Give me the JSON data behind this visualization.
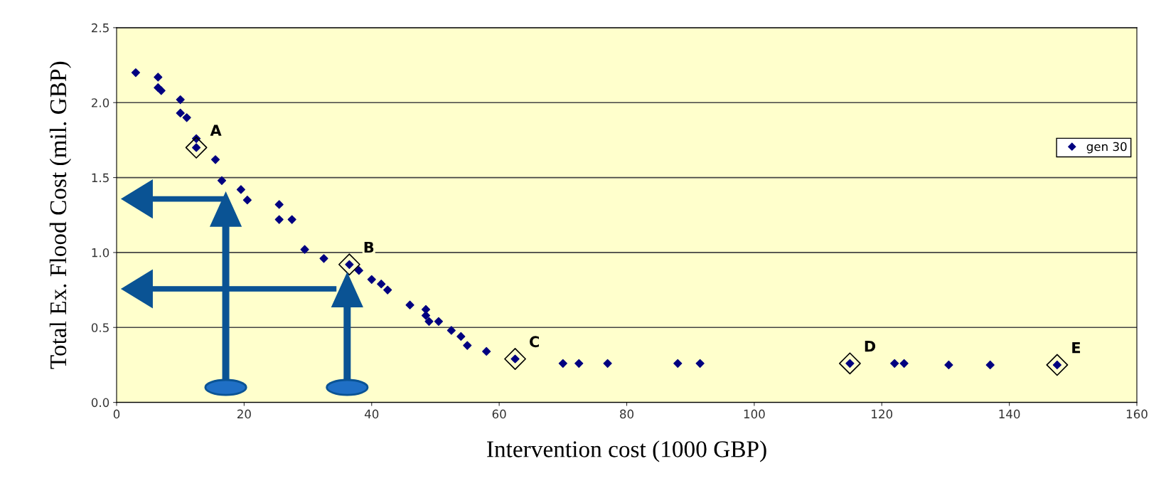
{
  "chart_data": {
    "type": "scatter",
    "xlabel": "Intervention cost (1000 GBP)",
    "ylabel": "Total Ex. Flood Cost (mil. GBP)",
    "series": [
      {
        "name": "gen 30",
        "color": "#000080",
        "marker": "diamond",
        "x": [
          3,
          6.5,
          6.5,
          7,
          10,
          10,
          11,
          12.5,
          12.5,
          15.5,
          16.5,
          19.5,
          20.5,
          25.5,
          25.5,
          27.5,
          29.5,
          32.5,
          36.5,
          38,
          40,
          41.5,
          42.5,
          46,
          48.5,
          48.5,
          49,
          50.5,
          52.5,
          54,
          55,
          58,
          62.5,
          70,
          72.5,
          77,
          88,
          91.5,
          115,
          122,
          123.5,
          130.5,
          137,
          147.5
        ],
        "values": [
          2.2,
          2.17,
          2.1,
          2.08,
          2.02,
          1.93,
          1.9,
          1.76,
          1.7,
          1.62,
          1.48,
          1.42,
          1.35,
          1.32,
          1.22,
          1.22,
          1.02,
          0.96,
          0.92,
          0.88,
          0.82,
          0.79,
          0.75,
          0.65,
          0.62,
          0.58,
          0.54,
          0.54,
          0.48,
          0.44,
          0.38,
          0.34,
          0.29,
          0.26,
          0.26,
          0.26,
          0.26,
          0.26,
          0.26,
          0.26,
          0.26,
          0.25,
          0.25,
          0.25
        ]
      }
    ],
    "annotations": [
      {
        "text": "A",
        "x": 12.5,
        "y": 1.7
      },
      {
        "text": "B",
        "x": 36.5,
        "y": 0.92
      },
      {
        "text": "C",
        "x": 62.5,
        "y": 0.29
      },
      {
        "text": "D",
        "x": 115,
        "y": 0.26
      },
      {
        "text": "E",
        "x": 147.5,
        "y": 0.25
      }
    ],
    "xlim": [
      0,
      160
    ],
    "xticks": [
      0,
      20,
      40,
      60,
      80,
      100,
      120,
      140,
      160
    ],
    "ylim": [
      0,
      2.5
    ],
    "yticks": [
      {
        "value": 0,
        "label": "0.0"
      },
      {
        "value": 0.5,
        "label": "0.5"
      },
      {
        "value": 1,
        "label": "1.0"
      },
      {
        "value": 1.5,
        "label": "1.5"
      },
      {
        "value": 2,
        "label": "2.0"
      },
      {
        "value": 2.5,
        "label": "2.5"
      }
    ],
    "grid": "y",
    "legend": "right"
  }
}
